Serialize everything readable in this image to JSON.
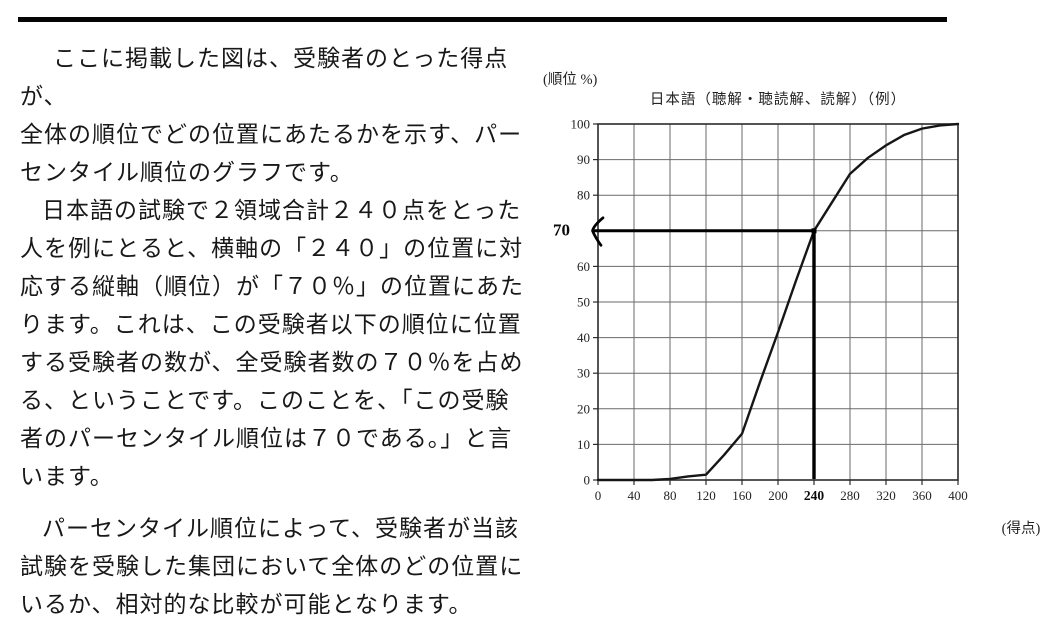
{
  "article": {
    "paragraphs": [
      "ここに掲載した図は、受験者のとった得点が、\n全体の順位でどの位置にあたるかを示す、パー\nセンタイル順位のグラフです。",
      "日本語の試験で２領域合計２４０点をとった\n人を例にとると、横軸の「２４０」の位置に対\n応する縦軸（順位）が「７０％」の位置にあた\nります。これは、この受験者以下の順位に位置\nする受験者の数が、全受験者数の７０％を占め\nる、ということです。このことを、「この受験\n者のパーセンタイル順位は７０である。」と言\nいます。",
      "パーセンタイル順位によって、受験者が当該\n試験を受験した集団において全体のどの位置に\nいるか、相対的な比較が可能となります。"
    ]
  },
  "chart_data": {
    "type": "line",
    "title": "日本語（聴解・聴読解、読解）（例）",
    "ylabel": "(順位 %)",
    "xlabel": "(得点)",
    "xlim": [
      0,
      400
    ],
    "ylim": [
      0,
      100
    ],
    "x_ticks": [
      0,
      40,
      80,
      120,
      160,
      200,
      240,
      280,
      320,
      360,
      400
    ],
    "y_ticks": [
      0,
      10,
      20,
      30,
      40,
      50,
      60,
      70,
      80,
      90,
      100
    ],
    "grid": true,
    "legend": false,
    "x": [
      0,
      20,
      40,
      60,
      80,
      100,
      120,
      140,
      160,
      180,
      200,
      220,
      240,
      260,
      280,
      300,
      320,
      340,
      360,
      380,
      400
    ],
    "values": [
      0,
      0,
      0,
      0,
      0.3,
      1,
      1.5,
      7,
      13,
      27.5,
      41.5,
      56,
      70,
      78,
      86,
      90.5,
      94,
      96.9,
      98.7,
      99.6,
      100
    ],
    "highlight": {
      "score_x": 240,
      "percentile_y": 70,
      "x_label": "240",
      "y_label": "70"
    },
    "colors": {
      "grid": "#6a6a6a",
      "frame": "#2b2b2b",
      "curve": "#161616",
      "highlight": "#000000"
    }
  }
}
